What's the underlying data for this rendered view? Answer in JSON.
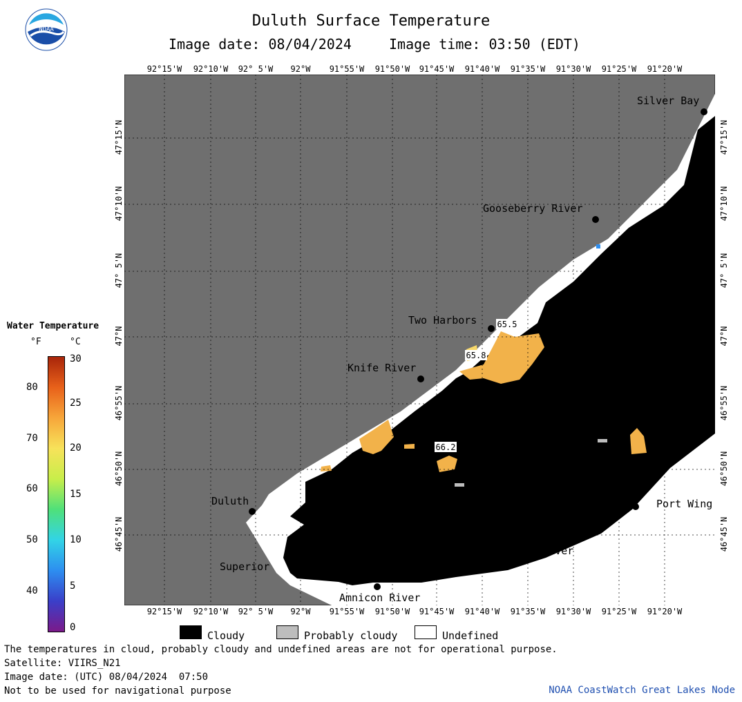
{
  "header": {
    "title": "Duluth Surface Temperature",
    "image_date": "Image date: 08/04/2024",
    "image_time": "Image time: 03:50 (EDT)"
  },
  "logo": {
    "text": "NOAA",
    "icon": "noaa-logo-icon",
    "colors": [
      "#1a4ea8",
      "#29a7e1",
      "#ffffff"
    ]
  },
  "map": {
    "land_color": "#6f6f6f",
    "cloud_color": "#000000",
    "undefined_color": "#ffffff",
    "lon_labels": [
      "92°15'W",
      "92°10'W",
      "92° 5'W",
      "92°W",
      "91°55'W",
      "91°50'W",
      "91°45'W",
      "91°40'W",
      "91°35'W",
      "91°30'W",
      "91°25'W",
      "91°20'W"
    ],
    "lat_labels": [
      "47°15'N",
      "47°10'N",
      "47° 5'N",
      "47°N",
      "46°55'N",
      "46°50'N",
      "46°45'N"
    ],
    "places": [
      {
        "name": "Silver Bay"
      },
      {
        "name": "Gooseberry River"
      },
      {
        "name": "Two Harbors"
      },
      {
        "name": "Knife River"
      },
      {
        "name": "Duluth"
      },
      {
        "name": "Superior"
      },
      {
        "name": "Amnicon River"
      },
      {
        "name": "Brule River"
      },
      {
        "name": "Port Wing"
      }
    ],
    "temperature_labels": [
      "65.5",
      "65.8",
      "66.2"
    ]
  },
  "legend": {
    "title": "Water Temperature",
    "unit_f": "°F",
    "unit_c": "°C",
    "f_ticks": [
      "80",
      "70",
      "60",
      "50",
      "40"
    ],
    "c_ticks": [
      "30",
      "25",
      "20",
      "15",
      "10",
      "5",
      "0"
    ],
    "color_stops": [
      "#7b1a8a",
      "#3a3fc9",
      "#2d8ef0",
      "#32d4e6",
      "#4fe07a",
      "#c8ee4a",
      "#f7e25a",
      "#f7a63a",
      "#e8611a",
      "#a8250a"
    ]
  },
  "keys": [
    {
      "label": "Cloudy",
      "color": "#000000"
    },
    {
      "label": "Probably cloudy",
      "color": "#bdbdbd"
    },
    {
      "label": "Undefined",
      "color": "#ffffff"
    }
  ],
  "footer": {
    "note": "The temperatures in cloud, probably cloudy and undefined areas are not for operational purpose.",
    "satellite": "Satellite: VIIRS_N21",
    "utc_date": "Image date: (UTC) 08/04/2024  07:50",
    "nav": "Not to be used for navigational purpose",
    "credit": "NOAA CoastWatch Great Lakes Node"
  }
}
